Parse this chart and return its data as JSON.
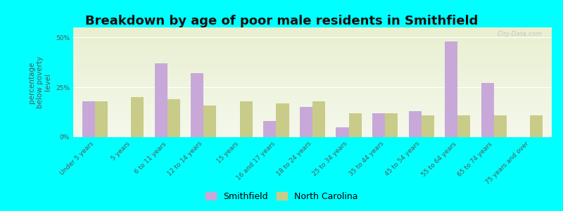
{
  "title": "Breakdown by age of poor male residents in Smithfield",
  "ylabel": "percentage\nbelow poverty\nlevel",
  "categories": [
    "Under 5 years",
    "5 years",
    "6 to 11 years",
    "12 to 14 years",
    "15 years",
    "16 and 17 years",
    "18 to 24 years",
    "25 to 34 years",
    "35 to 44 years",
    "45 to 54 years",
    "55 to 64 years",
    "65 to 74 years",
    "75 years and over"
  ],
  "smithfield": [
    18,
    0,
    37,
    32,
    0,
    8,
    15,
    5,
    12,
    13,
    48,
    27,
    0
  ],
  "north_carolina": [
    18,
    20,
    19,
    16,
    18,
    17,
    18,
    12,
    12,
    11,
    11,
    11,
    11
  ],
  "smithfield_color": "#c8a8d8",
  "nc_color": "#c8cc88",
  "bg_color": "#00ffff",
  "ylim": [
    0,
    55
  ],
  "yticks": [
    0,
    25,
    50
  ],
  "ytick_labels": [
    "0%",
    "25%",
    "50%"
  ],
  "bar_width": 0.35,
  "legend_smithfield": "Smithfield",
  "legend_nc": "North Carolina",
  "title_fontsize": 13,
  "axis_label_fontsize": 7.5,
  "tick_fontsize": 6.5,
  "watermark": "City-Data.com"
}
